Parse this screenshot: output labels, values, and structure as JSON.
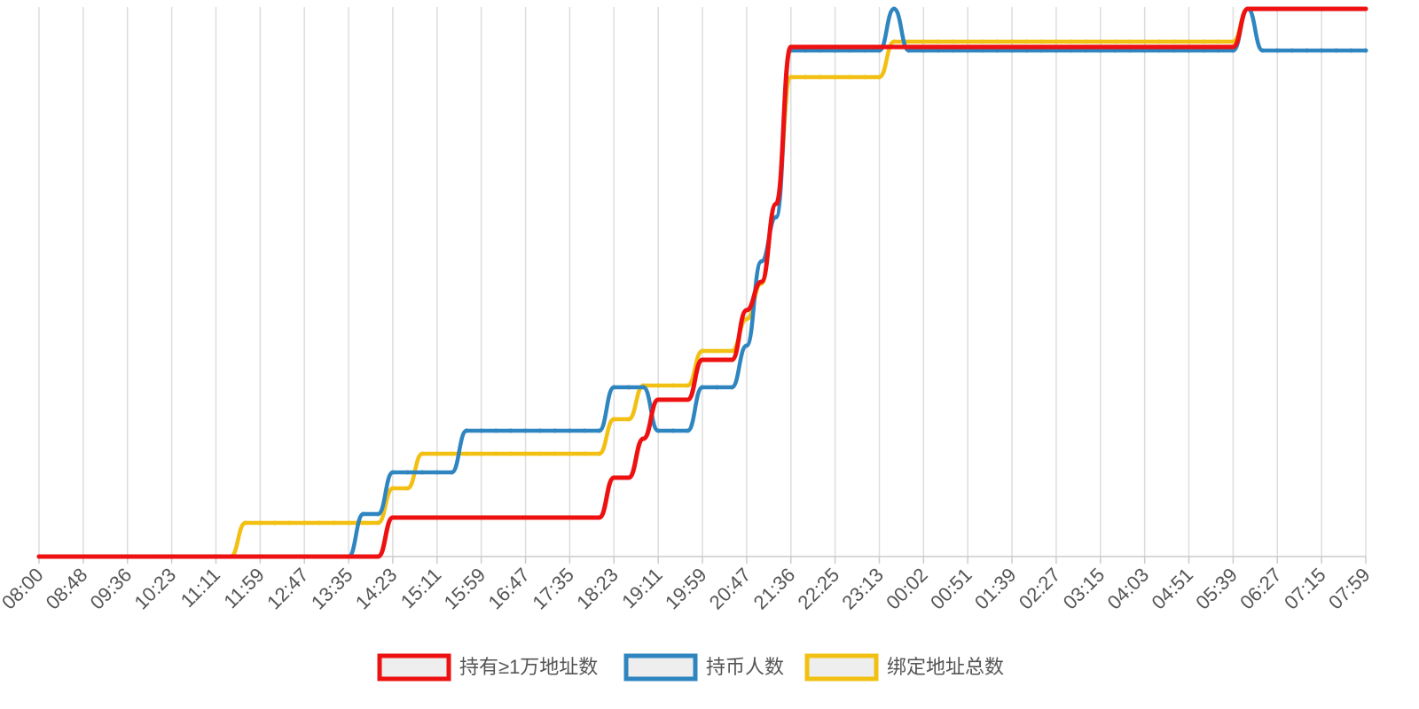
{
  "chart_data": {
    "type": "line",
    "categories": [
      "08:00",
      null,
      null,
      "08:48",
      null,
      null,
      "09:36",
      null,
      null,
      "10:23",
      null,
      null,
      "11:11",
      null,
      null,
      "11:59",
      null,
      null,
      "12:47",
      null,
      null,
      "13:35",
      null,
      null,
      "14:23",
      null,
      null,
      "15:11",
      null,
      null,
      "15:59",
      null,
      null,
      "16:47",
      null,
      null,
      "17:35",
      null,
      null,
      "18:23",
      null,
      null,
      "19:11",
      null,
      null,
      "19:59",
      null,
      null,
      "20:47",
      null,
      null,
      "21:36",
      null,
      null,
      "22:25",
      null,
      null,
      "23:13",
      null,
      null,
      "00:02",
      null,
      null,
      "00:51",
      null,
      null,
      "01:39",
      null,
      null,
      "02:27",
      null,
      null,
      "03:15",
      null,
      null,
      "04:03",
      null,
      null,
      "04:51",
      null,
      null,
      "05:39",
      null,
      null,
      "06:27",
      null,
      null,
      "07:15",
      null,
      null,
      "07:59"
    ],
    "series": [
      {
        "name": "持有≥1万地址数",
        "color": "#ee1111",
        "values": [
          0,
          0,
          0,
          0,
          0,
          0,
          0,
          0,
          0,
          0,
          0,
          0,
          0,
          0,
          0,
          0,
          0,
          0,
          0,
          0,
          0,
          0,
          0,
          0,
          44,
          44,
          44,
          44,
          44,
          44,
          44,
          44,
          44,
          44,
          44,
          44,
          44,
          44,
          44,
          89,
          89,
          133,
          177,
          177,
          177,
          222,
          222,
          222,
          278,
          310,
          398,
          575,
          575,
          575,
          575,
          575,
          575,
          575,
          575,
          575,
          575,
          575,
          575,
          575,
          575,
          575,
          575,
          575,
          575,
          575,
          575,
          575,
          575,
          575,
          575,
          575,
          575,
          575,
          575,
          575,
          575,
          575,
          618,
          618,
          618,
          618,
          618,
          618,
          618,
          618,
          618
        ]
      },
      {
        "name": "持币人数",
        "color": "#2f85c0",
        "values": [
          0,
          0,
          0,
          0,
          0,
          0,
          0,
          0,
          0,
          0,
          0,
          0,
          0,
          0,
          0,
          0,
          0,
          0,
          0,
          0,
          0,
          0,
          48,
          48,
          95,
          95,
          95,
          95,
          95,
          142,
          142,
          142,
          142,
          142,
          142,
          142,
          142,
          142,
          142,
          191,
          191,
          191,
          142,
          142,
          142,
          191,
          191,
          191,
          238,
          333,
          383,
          571,
          571,
          571,
          571,
          571,
          571,
          571,
          618,
          571,
          571,
          571,
          571,
          571,
          571,
          571,
          571,
          571,
          571,
          571,
          571,
          571,
          571,
          571,
          571,
          571,
          571,
          571,
          571,
          571,
          571,
          571,
          618,
          571,
          571,
          571,
          571,
          571,
          571,
          571,
          571
        ]
      },
      {
        "name": "绑定地址总数",
        "color": "#f2c012",
        "values": [
          0,
          0,
          0,
          0,
          0,
          0,
          0,
          0,
          0,
          0,
          0,
          0,
          0,
          0,
          38,
          38,
          38,
          38,
          38,
          38,
          38,
          38,
          38,
          38,
          77,
          77,
          116,
          116,
          116,
          116,
          116,
          116,
          116,
          116,
          116,
          116,
          116,
          116,
          116,
          155,
          155,
          193,
          193,
          193,
          193,
          232,
          232,
          232,
          268,
          308,
          398,
          541,
          541,
          541,
          541,
          541,
          541,
          541,
          581,
          581,
          581,
          581,
          581,
          581,
          581,
          581,
          581,
          581,
          581,
          581,
          581,
          581,
          581,
          581,
          581,
          581,
          581,
          581,
          581,
          581,
          581,
          581,
          618,
          618,
          618,
          618,
          618,
          618,
          618,
          618,
          618
        ]
      }
    ],
    "ylim": [
      0,
      620
    ],
    "grid": true
  }
}
